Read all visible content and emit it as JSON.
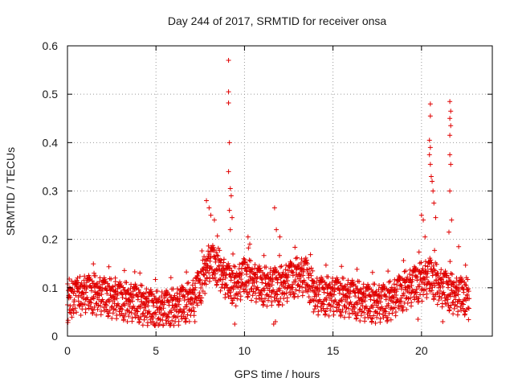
{
  "chart_data": {
    "type": "scatter",
    "title": "Day 244 of 2017, SRMTID for receiver onsa",
    "xlabel": "GPS time / hours",
    "ylabel": "SRMTID / TECUs",
    "xlim": [
      0,
      24
    ],
    "ylim": [
      0,
      0.6
    ],
    "xticks": [
      0,
      5,
      10,
      15,
      20
    ],
    "yticks": [
      0,
      0.1,
      0.2,
      0.3,
      0.4,
      0.5,
      0.6
    ],
    "xtick_labels": [
      "0",
      "5",
      "10",
      "15",
      "20"
    ],
    "ytick_labels": [
      "0",
      "0.1",
      "0.2",
      "0.3",
      "0.4",
      "0.5",
      "0.6"
    ],
    "grid": true,
    "marker": "+",
    "series": [
      {
        "name": "SRMTID",
        "color": "#e00000",
        "profile": {
          "x": [
            0.0,
            1.0,
            2.0,
            3.0,
            4.0,
            5.0,
            6.0,
            7.0,
            7.5,
            8.0,
            8.5,
            9.0,
            9.5,
            10.0,
            10.5,
            11.0,
            12.0,
            13.0,
            13.5,
            14.0,
            15.0,
            16.0,
            17.0,
            18.0,
            19.0,
            19.5,
            20.0,
            20.5,
            21.0,
            21.5,
            22.0,
            22.5,
            22.7
          ],
          "y": [
            0.07,
            0.085,
            0.08,
            0.07,
            0.065,
            0.05,
            0.055,
            0.07,
            0.1,
            0.15,
            0.14,
            0.11,
            0.1,
            0.12,
            0.11,
            0.1,
            0.1,
            0.12,
            0.12,
            0.08,
            0.08,
            0.075,
            0.065,
            0.065,
            0.09,
            0.1,
            0.11,
            0.12,
            0.1,
            0.09,
            0.08,
            0.08,
            0.07
          ]
        },
        "outliers": [
          [
            9.1,
            0.57
          ],
          [
            9.1,
            0.505
          ],
          [
            9.1,
            0.482
          ],
          [
            9.15,
            0.4
          ],
          [
            9.1,
            0.34
          ],
          [
            9.2,
            0.305
          ],
          [
            9.25,
            0.29
          ],
          [
            9.15,
            0.26
          ],
          [
            9.3,
            0.245
          ],
          [
            9.2,
            0.22
          ],
          [
            7.85,
            0.28
          ],
          [
            8.0,
            0.265
          ],
          [
            8.1,
            0.25
          ],
          [
            8.3,
            0.24
          ],
          [
            11.7,
            0.265
          ],
          [
            11.8,
            0.22
          ],
          [
            12.0,
            0.205
          ],
          [
            10.2,
            0.205
          ],
          [
            10.3,
            0.19
          ],
          [
            20.0,
            0.25
          ],
          [
            20.1,
            0.24
          ],
          [
            20.2,
            0.205
          ],
          [
            20.5,
            0.48
          ],
          [
            20.5,
            0.455
          ],
          [
            20.45,
            0.405
          ],
          [
            20.5,
            0.39
          ],
          [
            20.45,
            0.375
          ],
          [
            20.5,
            0.355
          ],
          [
            20.55,
            0.33
          ],
          [
            20.6,
            0.32
          ],
          [
            20.65,
            0.3
          ],
          [
            20.7,
            0.275
          ],
          [
            20.8,
            0.245
          ],
          [
            21.6,
            0.485
          ],
          [
            21.65,
            0.465
          ],
          [
            21.6,
            0.45
          ],
          [
            21.65,
            0.435
          ],
          [
            21.6,
            0.415
          ],
          [
            21.6,
            0.375
          ],
          [
            21.65,
            0.355
          ],
          [
            21.6,
            0.3
          ],
          [
            21.7,
            0.24
          ],
          [
            21.55,
            0.215
          ],
          [
            22.1,
            0.185
          ],
          [
            11.65,
            0.025
          ],
          [
            11.75,
            0.03
          ],
          [
            9.45,
            0.025
          ],
          [
            7.2,
            0.03
          ],
          [
            21.2,
            0.03
          ],
          [
            19.8,
            0.035
          ],
          [
            3.8,
            0.133
          ],
          [
            0.1,
            0.118
          ],
          [
            1.5,
            0.13
          ],
          [
            2.7,
            0.12
          ]
        ]
      }
    ]
  }
}
